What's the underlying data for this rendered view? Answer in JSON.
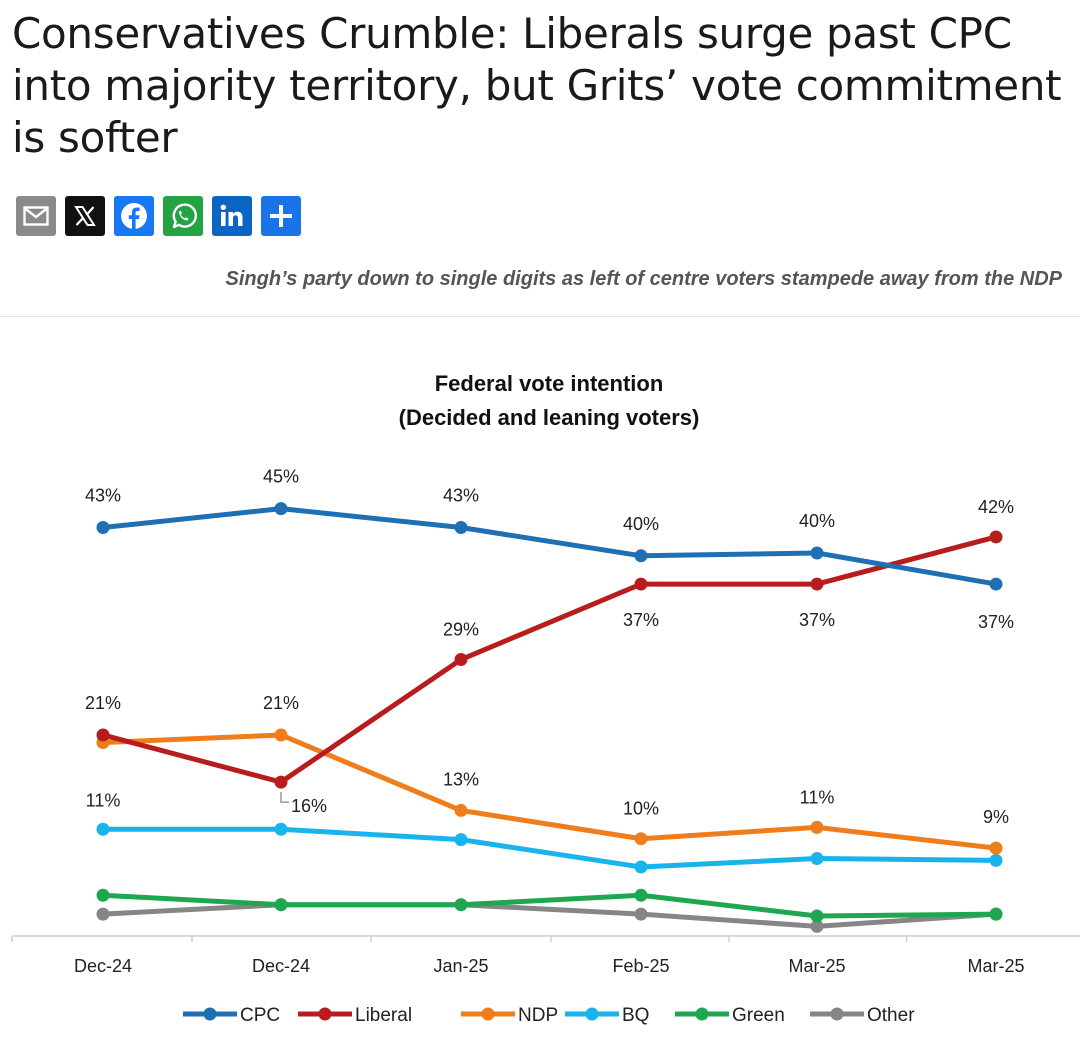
{
  "article": {
    "headline": "Conservatives Crumble: Liberals surge past CPC into majority territory, but Grits’ vote commitment is softer",
    "subhead": "Singh’s party down to single digits as left of centre voters stampede away from the NDP"
  },
  "share_buttons": [
    {
      "icon": "email-icon",
      "color": "#8a8a8a"
    },
    {
      "icon": "x-icon",
      "color": "#111111"
    },
    {
      "icon": "facebook-icon",
      "color": "#1877f2"
    },
    {
      "icon": "whatsapp-icon",
      "color": "#25a244"
    },
    {
      "icon": "linkedin-icon",
      "color": "#0a66c2"
    },
    {
      "icon": "share-plus-icon",
      "color": "#1a73e8"
    }
  ],
  "chart_data": {
    "type": "line",
    "title": "Federal vote intention",
    "subtitle": "(Decided and leaning voters)",
    "categories": [
      "Dec-24",
      "Dec-24",
      "Jan-25",
      "Feb-25",
      "Mar-25",
      "Mar-25"
    ],
    "ylim": [
      0,
      50
    ],
    "grid": false,
    "legend_position": "bottom",
    "series": [
      {
        "name": "CPC",
        "color": "#1f6fb5",
        "values": [
          43,
          45,
          43,
          40,
          40.3,
          37
        ],
        "labels": [
          "43%",
          "45%",
          "43%",
          "40%",
          "40%",
          "37%"
        ]
      },
      {
        "name": "Liberal",
        "color": "#b81d1d",
        "values": [
          21,
          16,
          29,
          37,
          37,
          42
        ],
        "labels": [
          "21%",
          "16%",
          "29%",
          "37%",
          "37%",
          "42%"
        ]
      },
      {
        "name": "NDP",
        "color": "#f07d1c",
        "values": [
          20.2,
          21,
          13,
          10,
          11.2,
          9
        ],
        "labels": [
          "",
          "21%",
          "13%",
          "10%",
          "11%",
          "9%"
        ]
      },
      {
        "name": "BQ",
        "color": "#1ab4ec",
        "values": [
          11,
          11,
          9.9,
          7,
          7.9,
          7.7
        ],
        "labels": [
          "11%",
          "",
          "",
          "",
          "",
          ""
        ]
      },
      {
        "name": "Green",
        "color": "#1fa650",
        "values": [
          4,
          3,
          3,
          4,
          1.8,
          2
        ],
        "labels": [
          "",
          "",
          "",
          "",
          "",
          ""
        ]
      },
      {
        "name": "Other",
        "color": "#868686",
        "values": [
          2,
          3,
          3,
          2,
          0.7,
          2
        ],
        "labels": [
          "",
          "",
          "",
          "",
          "",
          ""
        ]
      }
    ]
  }
}
